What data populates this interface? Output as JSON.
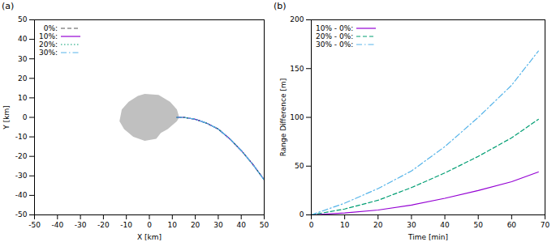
{
  "chart_data": [
    {
      "type": "line",
      "title": "(a)",
      "x_label": "X [km]",
      "y_label": "Y [km]",
      "xlim": [
        -50,
        50
      ],
      "xticks": [
        -50,
        -40,
        -30,
        -20,
        -10,
        0,
        10,
        20,
        30,
        40,
        50
      ],
      "ylim": [
        -50,
        50
      ],
      "yticks": [
        -50,
        -40,
        -30,
        -20,
        -10,
        0,
        10,
        20,
        30,
        40,
        50
      ],
      "legend": "top-left",
      "x": [
        12,
        15,
        20,
        25,
        30,
        35,
        40,
        45,
        50
      ],
      "series": [
        {
          "name": "0%:",
          "color": "#555555",
          "line_style": "dashed",
          "values": [
            0,
            0,
            -1,
            -3,
            -6,
            -11,
            -17,
            -24,
            -32
          ]
        },
        {
          "name": "10%:",
          "color": "#9400d3",
          "line_style": "solid",
          "values": [
            0,
            0,
            -1,
            -3,
            -6,
            -11,
            -17,
            -24,
            -32.04
          ]
        },
        {
          "name": "20%:",
          "color": "#009e73",
          "line_style": "dotted",
          "values": [
            0,
            0,
            -1,
            -3,
            -6,
            -11,
            -17,
            -24,
            -32.1
          ]
        },
        {
          "name": "30%:",
          "color": "#56b4e9",
          "line_style": "dashdot",
          "values": [
            0,
            0,
            -1,
            -3,
            -6,
            -11,
            -17,
            -24,
            -32.17
          ]
        }
      ],
      "body": {
        "color": "#c0c0c0",
        "x": [
          -2,
          4,
          9,
          12,
          13,
          12,
          8,
          5,
          3,
          -2,
          -7,
          -11,
          -13,
          -12,
          -9,
          -5
        ],
        "y": [
          12,
          11.5,
          8,
          4,
          0,
          -2,
          -6,
          -8,
          -11,
          -12,
          -10,
          -6,
          -2,
          4,
          8,
          11
        ]
      }
    },
    {
      "type": "line",
      "title": "(b)",
      "x_label": "Time [min]",
      "y_label": "Range Difference [m]",
      "xlim": [
        0,
        70
      ],
      "xticks": [
        0,
        10,
        20,
        30,
        40,
        50,
        60,
        70
      ],
      "ylim": [
        0,
        200
      ],
      "yticks": [
        0,
        50,
        100,
        150,
        200
      ],
      "legend": "top-left",
      "x": [
        0,
        10,
        20,
        30,
        40,
        50,
        60,
        68
      ],
      "series": [
        {
          "name": "10% - 0%:",
          "color": "#9400d3",
          "line_style": "solid",
          "values": [
            0,
            2,
            5,
            10,
            17,
            25,
            34,
            44
          ]
        },
        {
          "name": "20% - 0%:",
          "color": "#009e73",
          "line_style": "dashed",
          "values": [
            0,
            6,
            15,
            28,
            43,
            60,
            79,
            98
          ]
        },
        {
          "name": "30% - 0%:",
          "color": "#56b4e9",
          "line_style": "dashdot",
          "values": [
            0,
            12,
            27,
            45,
            70,
            100,
            133,
            168
          ]
        }
      ]
    }
  ]
}
